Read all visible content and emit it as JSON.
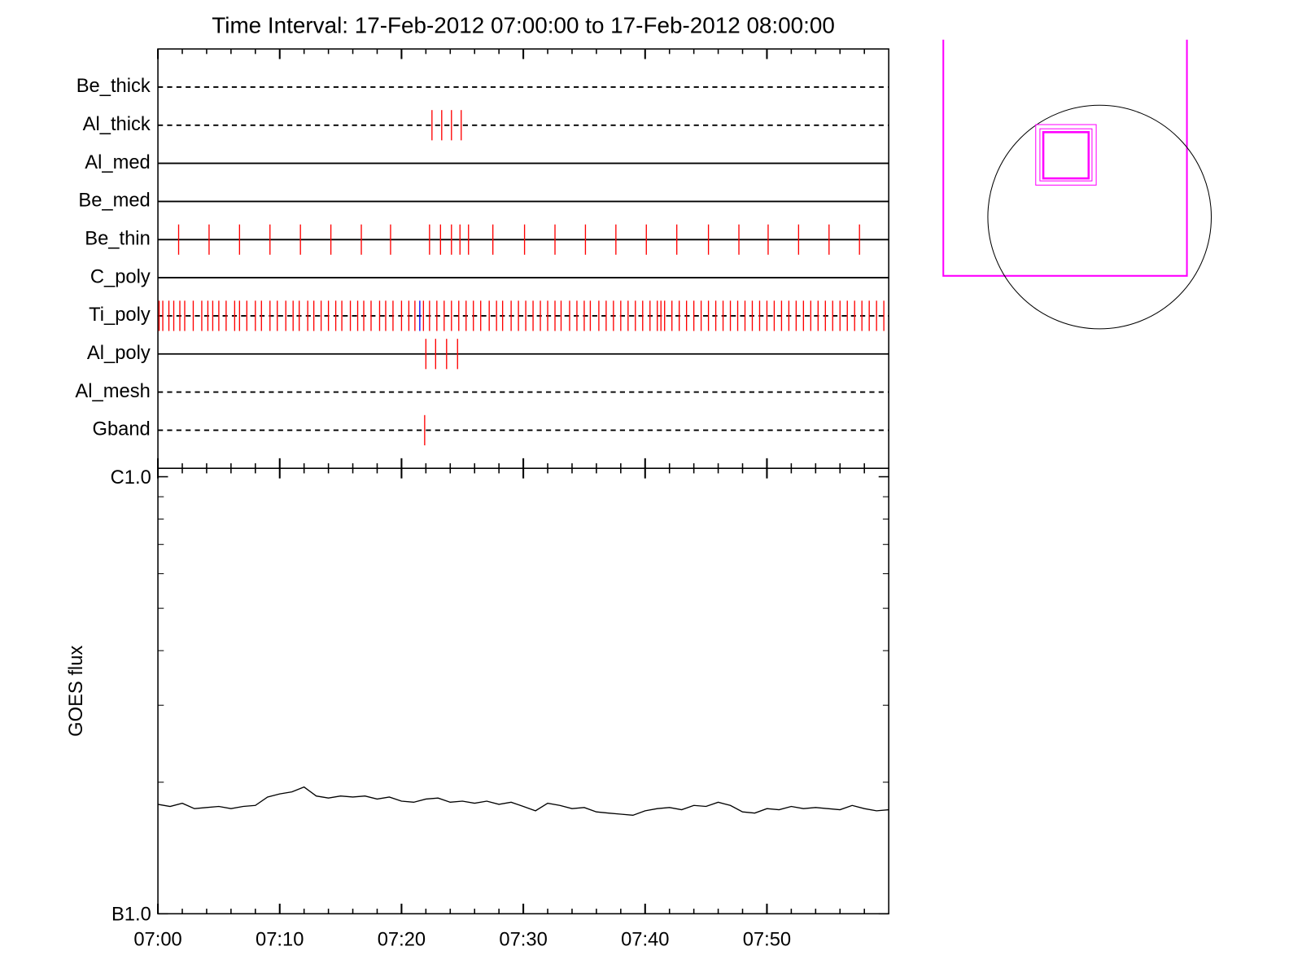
{
  "chart_data": [
    {
      "type": "event",
      "title": "Time Interval: 17-Feb-2012 07:00:00 to 17-Feb-2012 08:00:00",
      "categories": [
        "Be_thick",
        "Al_thick",
        "Al_med",
        "Be_med",
        "Be_thin",
        "C_poly",
        "Ti_poly",
        "Al_poly",
        "Al_mesh",
        "Gband"
      ],
      "line_styles": [
        "dashed",
        "dashed",
        "solid",
        "solid",
        "solid",
        "solid",
        "dashed",
        "solid",
        "dashed",
        "dashed"
      ],
      "xlim": [
        0,
        60
      ],
      "xticks": [
        0,
        10,
        20,
        30,
        40,
        50
      ],
      "xminorticks": [
        2,
        4,
        6,
        8,
        12,
        14,
        16,
        18,
        22,
        24,
        26,
        28,
        32,
        34,
        36,
        38,
        42,
        44,
        46,
        48,
        52,
        54,
        56,
        58
      ],
      "series": [
        {
          "color": "#ff0000",
          "values": [
            [],
            [
              22.5,
              23.3,
              24.1,
              24.9
            ],
            [],
            [],
            [
              1.7,
              4.2,
              6.7,
              9.2,
              11.7,
              14.2,
              16.7,
              19.1,
              22.3,
              23.2,
              24.1,
              24.8,
              25.5,
              27.5,
              30.1,
              32.6,
              35.1,
              37.6,
              40.1,
              42.6,
              45.2,
              47.7,
              50.1,
              52.6,
              55.1,
              57.6
            ],
            [],
            [
              0.1,
              0.4,
              0.9,
              1.3,
              1.8,
              2.2,
              2.9,
              3.6,
              4.1,
              4.5,
              5.0,
              5.6,
              6.3,
              6.7,
              7.3,
              8.0,
              8.5,
              9.2,
              9.8,
              10.5,
              11.1,
              11.6,
              12.3,
              12.8,
              13.4,
              14.0,
              14.6,
              15.1,
              15.8,
              16.4,
              16.9,
              17.5,
              18.2,
              18.7,
              19.3,
              20.0,
              20.6,
              21.1,
              21.8,
              22.3,
              22.9,
              23.5,
              24.1,
              24.7,
              25.3,
              25.9,
              26.5,
              27.2,
              27.8,
              28.3,
              29.0,
              29.6,
              30.2,
              30.8,
              31.4,
              32.0,
              32.6,
              33.1,
              33.8,
              34.4,
              35.0,
              35.5,
              36.2,
              36.8,
              37.4,
              38.0,
              38.6,
              39.2,
              39.8,
              40.4,
              41.0,
              41.3,
              41.6,
              42.2,
              42.8,
              43.4,
              44.0,
              44.6,
              45.2,
              45.8,
              46.4,
              47.0,
              47.6,
              48.2,
              48.8,
              49.4,
              50.0,
              50.6,
              51.2,
              51.8,
              52.4,
              53.0,
              53.6,
              54.2,
              54.8,
              55.4,
              56.0,
              56.6,
              57.2,
              57.8,
              58.4,
              59.0,
              59.6
            ],
            [
              22.0,
              22.8,
              23.7,
              24.6
            ],
            [],
            [
              21.9
            ]
          ]
        },
        {
          "color": "#0000ff",
          "values": [
            [],
            [],
            [],
            [],
            [],
            [],
            [
              21.5
            ],
            [],
            [],
            []
          ]
        }
      ]
    },
    {
      "type": "line",
      "ylabel": "GOES flux",
      "log": true,
      "xlim": [
        0,
        60
      ],
      "xticks": [
        {
          "value": 0,
          "label": "07:00"
        },
        {
          "value": 10,
          "label": "07:10"
        },
        {
          "value": 20,
          "label": "07:20"
        },
        {
          "value": 30,
          "label": "07:30"
        },
        {
          "value": 40,
          "label": "07:40"
        },
        {
          "value": 50,
          "label": "07:50"
        }
      ],
      "xminorticks": [
        2,
        4,
        6,
        8,
        12,
        14,
        16,
        18,
        22,
        24,
        26,
        28,
        32,
        34,
        36,
        38,
        42,
        44,
        46,
        48,
        52,
        54,
        56,
        58
      ],
      "ylim": [
        1e-07,
        1e-06
      ],
      "yticks": [
        {
          "value": 1e-06,
          "label": "C1.0"
        },
        {
          "value": 1e-07,
          "label": "B1.0"
        }
      ],
      "yminorticks": [
        2e-07,
        3e-07,
        4e-07,
        5e-07,
        6e-07,
        7e-07,
        8e-07,
        9e-07
      ],
      "series": [
        {
          "color": "#000000",
          "x": [
            0,
            1,
            2,
            3,
            4,
            5,
            6,
            7,
            8,
            9,
            10,
            11,
            12,
            13,
            14,
            15,
            16,
            17,
            18,
            19,
            20,
            21,
            22,
            23,
            24,
            25,
            26,
            27,
            28,
            29,
            30,
            31,
            32,
            33,
            34,
            35,
            36,
            37,
            38,
            39,
            40,
            41,
            42,
            43,
            44,
            45,
            46,
            47,
            48,
            49,
            50,
            51,
            52,
            53,
            54,
            55,
            56,
            57,
            58,
            59,
            60
          ],
          "values": [
            1.78e-07,
            1.76e-07,
            1.79e-07,
            1.74e-07,
            1.75e-07,
            1.76e-07,
            1.74e-07,
            1.76e-07,
            1.77e-07,
            1.85e-07,
            1.88e-07,
            1.9e-07,
            1.95e-07,
            1.86e-07,
            1.84e-07,
            1.86e-07,
            1.85e-07,
            1.86e-07,
            1.83e-07,
            1.85e-07,
            1.81e-07,
            1.8e-07,
            1.83e-07,
            1.84e-07,
            1.8e-07,
            1.81e-07,
            1.79e-07,
            1.81e-07,
            1.78e-07,
            1.8e-07,
            1.76e-07,
            1.72e-07,
            1.79e-07,
            1.77e-07,
            1.74e-07,
            1.75e-07,
            1.71e-07,
            1.7e-07,
            1.69e-07,
            1.68e-07,
            1.72e-07,
            1.74e-07,
            1.75e-07,
            1.73e-07,
            1.77e-07,
            1.76e-07,
            1.8e-07,
            1.77e-07,
            1.71e-07,
            1.7e-07,
            1.74e-07,
            1.73e-07,
            1.76e-07,
            1.74e-07,
            1.75e-07,
            1.74e-07,
            1.73e-07,
            1.77e-07,
            1.74e-07,
            1.72e-07,
            1.73e-07
          ]
        }
      ]
    }
  ]
}
